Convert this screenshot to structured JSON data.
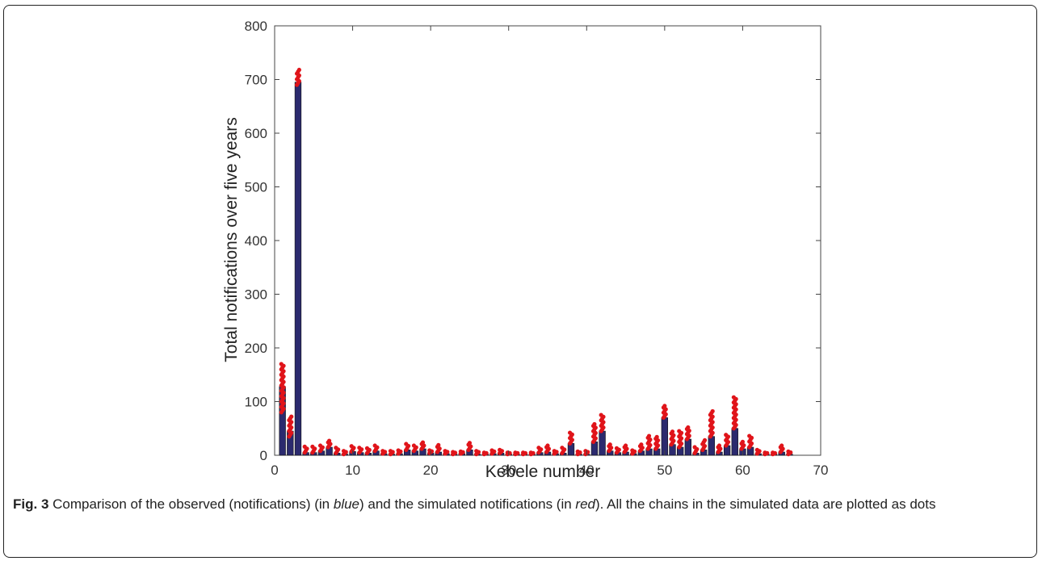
{
  "caption": {
    "label": "Fig. 3",
    "text_1": " Comparison of the observed (notifications) (in ",
    "blue_word": "blue",
    "text_2": ") and the simulated notifications (in ",
    "red_word": "red",
    "text_3": "). All the chains in the simulated data are plotted as dots"
  },
  "chart_data": {
    "type": "bar",
    "xlabel": "Kebele number",
    "ylabel": "Total notifications over five years",
    "xlim": [
      0,
      70
    ],
    "ylim": [
      0,
      800
    ],
    "xticks": [
      0,
      10,
      20,
      30,
      40,
      50,
      60,
      70
    ],
    "yticks": [
      0,
      100,
      200,
      300,
      400,
      500,
      600,
      700,
      800
    ],
    "grid": false,
    "colors": {
      "observed": "#2b2a6e",
      "simulated": "#e0141a"
    },
    "x": [
      1,
      2,
      3,
      4,
      5,
      6,
      7,
      8,
      9,
      10,
      11,
      12,
      13,
      14,
      15,
      16,
      17,
      18,
      19,
      20,
      21,
      22,
      23,
      24,
      25,
      26,
      27,
      28,
      29,
      30,
      31,
      32,
      33,
      34,
      35,
      36,
      37,
      38,
      39,
      40,
      41,
      42,
      43,
      44,
      45,
      46,
      47,
      48,
      49,
      50,
      51,
      52,
      53,
      54,
      55,
      56,
      57,
      58,
      59,
      60,
      61,
      62,
      63,
      64,
      65,
      66
    ],
    "series": [
      {
        "values": [
          128,
          45,
          695,
          5,
          5,
          8,
          15,
          4,
          2,
          7,
          5,
          4,
          8,
          3,
          2,
          3,
          10,
          8,
          12,
          4,
          6,
          3,
          2,
          3,
          10,
          2,
          2,
          3,
          4,
          2,
          2,
          2,
          2,
          5,
          6,
          3,
          4,
          22,
          2,
          2,
          25,
          45,
          8,
          5,
          6,
          3,
          8,
          12,
          12,
          70,
          20,
          15,
          30,
          4,
          10,
          35,
          6,
          18,
          50,
          12,
          15,
          3,
          2,
          2,
          6,
          2
        ]
      },
      {
        "ranges": [
          [
            80,
            170
          ],
          [
            35,
            72
          ],
          [
            690,
            718
          ],
          [
            5,
            16
          ],
          [
            5,
            16
          ],
          [
            8,
            18
          ],
          [
            15,
            27
          ],
          [
            4,
            14
          ],
          [
            2,
            8
          ],
          [
            7,
            17
          ],
          [
            5,
            14
          ],
          [
            4,
            13
          ],
          [
            8,
            18
          ],
          [
            3,
            8
          ],
          [
            2,
            8
          ],
          [
            3,
            9
          ],
          [
            10,
            21
          ],
          [
            8,
            18
          ],
          [
            12,
            24
          ],
          [
            4,
            9
          ],
          [
            6,
            19
          ],
          [
            3,
            8
          ],
          [
            2,
            6
          ],
          [
            3,
            7
          ],
          [
            10,
            23
          ],
          [
            2,
            8
          ],
          [
            2,
            5
          ],
          [
            3,
            9
          ],
          [
            4,
            10
          ],
          [
            2,
            5
          ],
          [
            2,
            5
          ],
          [
            2,
            5
          ],
          [
            2,
            5
          ],
          [
            5,
            14
          ],
          [
            6,
            18
          ],
          [
            3,
            8
          ],
          [
            4,
            14
          ],
          [
            22,
            42
          ],
          [
            2,
            7
          ],
          [
            2,
            8
          ],
          [
            25,
            58
          ],
          [
            45,
            75
          ],
          [
            8,
            20
          ],
          [
            5,
            13
          ],
          [
            6,
            18
          ],
          [
            3,
            9
          ],
          [
            8,
            20
          ],
          [
            12,
            36
          ],
          [
            12,
            34
          ],
          [
            70,
            92
          ],
          [
            20,
            44
          ],
          [
            15,
            45
          ],
          [
            30,
            52
          ],
          [
            4,
            15
          ],
          [
            10,
            28
          ],
          [
            35,
            82
          ],
          [
            6,
            18
          ],
          [
            18,
            38
          ],
          [
            50,
            108
          ],
          [
            12,
            25
          ],
          [
            15,
            36
          ],
          [
            3,
            10
          ],
          [
            2,
            5
          ],
          [
            2,
            5
          ],
          [
            6,
            18
          ],
          [
            2,
            7
          ]
        ]
      }
    ]
  }
}
